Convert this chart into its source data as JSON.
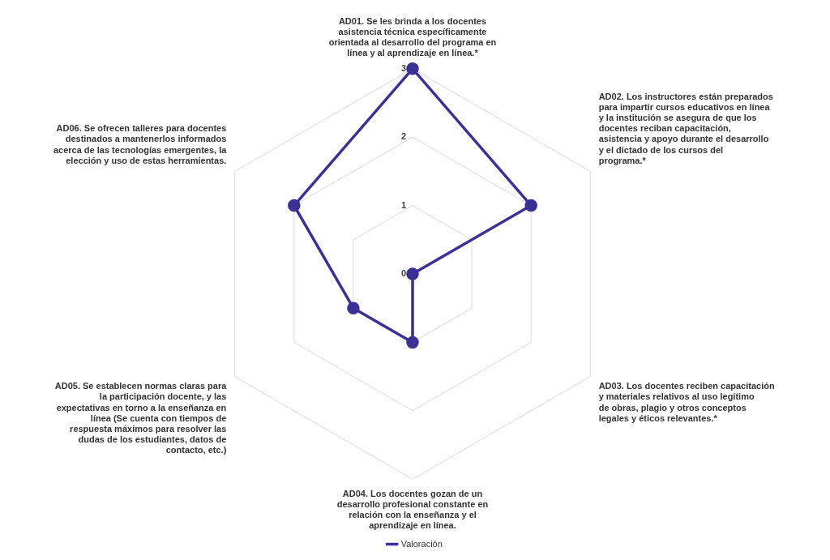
{
  "chart_data": {
    "type": "radar",
    "categories": [
      "AD01. Se les brinda a los docentes asistencia técnica específicamente orientada al desarrollo del programa en línea y al aprendizaje en línea.*",
      "AD02. Los instructores están preparados para impartir cursos educativos en línea y la institución se asegura de que los docentes reciban capacitación, asistencia y apoyo durante el desarrollo y el dictado de los cursos del programa.*",
      "AD03. Los docentes reciben capacitación y materiales relativos al uso legítimo de obras, plagio y otros conceptos legales y éticos relevantes.*",
      "AD04. Los docentes gozan de un desarrollo profesional constante en relación con la enseñanza y el aprendizaje en línea.",
      "AD05. Se establecen normas claras para la participación docente, y las expectativas en torno a la enseñanza en línea (Se cuenta con tiempos de respuesta máximos para resolver las dudas de los estudiantes, datos de contacto, etc.)",
      "AD06. Se ofrecen talleres para docentes destinados a mantenerlos informados acerca de las tecnologías emergentes, la elección y uso de estas herramientas."
    ],
    "series": [
      {
        "name": "Valoración",
        "color": "#3a3096",
        "values": [
          3,
          2,
          0,
          1,
          1,
          2
        ]
      }
    ],
    "ylim": [
      0,
      3
    ],
    "yticks": [
      0,
      1,
      2,
      3
    ],
    "grid": true,
    "legend": "bottom",
    "marker": "circle"
  }
}
